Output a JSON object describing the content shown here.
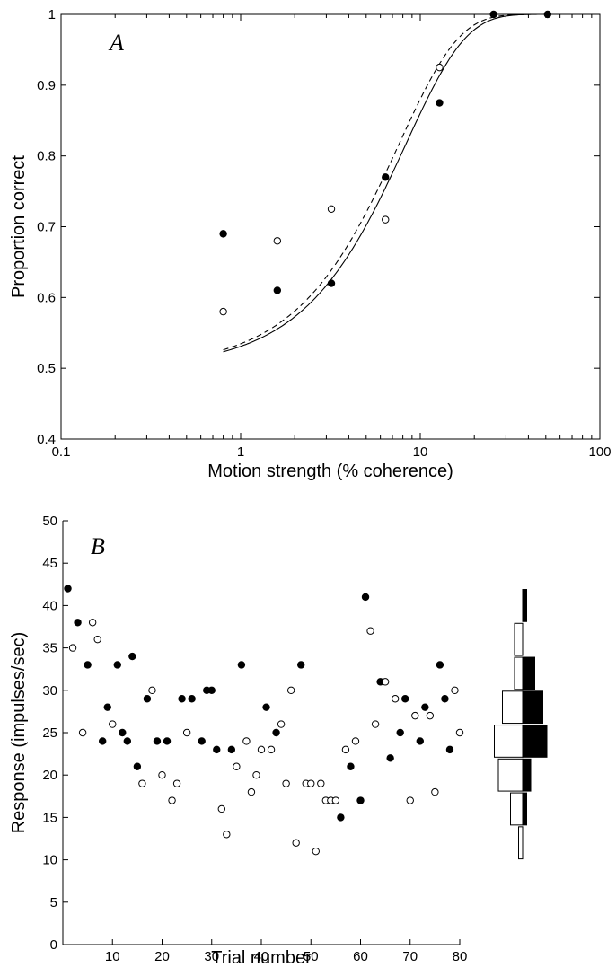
{
  "chart_data": [
    {
      "type": "scatter",
      "panel_label": "A",
      "xlabel": "Motion strength (% coherence)",
      "ylabel": "Proportion correct",
      "xscale": "log",
      "xlim": [
        0.1,
        100
      ],
      "ylim": [
        0.4,
        1
      ],
      "xticks": [
        0.1,
        1,
        10,
        100
      ],
      "xtick_labels": [
        "0.1",
        "1",
        "10",
        "100"
      ],
      "yticks": [
        0.4,
        0.5,
        0.6,
        0.7,
        0.8,
        0.9,
        1
      ],
      "ytick_labels": [
        "0.4",
        "0.5",
        "0.6",
        "0.7",
        "0.8",
        "0.9",
        "1"
      ],
      "grid": false,
      "series": [
        {
          "marker": "filled-circle",
          "x": [
            0.8,
            1.6,
            3.2,
            6.4,
            12.8,
            25.6,
            51.2
          ],
          "y": [
            0.69,
            0.61,
            0.62,
            0.77,
            0.875,
            1.0,
            1.0
          ]
        },
        {
          "marker": "open-circle",
          "x": [
            0.8,
            1.6,
            3.2,
            6.4,
            12.8
          ],
          "y": [
            0.58,
            0.68,
            0.725,
            0.71,
            0.925
          ]
        }
      ],
      "fits": [
        {
          "style": "solid",
          "threshold": 8.3,
          "slope": 1.3
        },
        {
          "style": "dashed",
          "threshold": 7.6,
          "slope": 1.3
        }
      ]
    },
    {
      "type": "scatter",
      "panel_label": "B",
      "xlabel": "Trial number",
      "ylabel": "Response (impulses/sec)",
      "xlim": [
        0,
        80
      ],
      "ylim": [
        0,
        50
      ],
      "xticks": [
        10,
        20,
        30,
        40,
        50,
        60,
        70,
        80
      ],
      "xtick_labels": [
        "10",
        "20",
        "30",
        "40",
        "50",
        "60",
        "70",
        "80"
      ],
      "yticks": [
        0,
        5,
        10,
        15,
        20,
        25,
        30,
        35,
        40,
        45,
        50
      ],
      "ytick_labels": [
        "0",
        "5",
        "10",
        "15",
        "20",
        "25",
        "30",
        "35",
        "40",
        "45",
        "50"
      ],
      "grid": false,
      "series": [
        {
          "marker": "filled-circle",
          "x": [
            1,
            3,
            5,
            8,
            9,
            11,
            12,
            13,
            14,
            15,
            17,
            19,
            21,
            24,
            26,
            28,
            29,
            30,
            31,
            34,
            36,
            41,
            43,
            48,
            56,
            58,
            60,
            61,
            64,
            66,
            68,
            69,
            72,
            73,
            76,
            77,
            78
          ],
          "y": [
            42,
            38,
            33,
            24,
            28,
            33,
            25,
            24,
            34,
            21,
            29,
            24,
            24,
            29,
            29,
            24,
            30,
            30,
            23,
            23,
            33,
            28,
            25,
            33,
            15,
            21,
            17,
            41,
            31,
            22,
            25,
            29,
            24,
            28,
            33,
            29,
            23
          ]
        },
        {
          "marker": "open-circle",
          "x": [
            2,
            4,
            6,
            7,
            10,
            16,
            18,
            20,
            22,
            23,
            25,
            32,
            33,
            35,
            37,
            38,
            39,
            40,
            42,
            44,
            45,
            46,
            47,
            49,
            50,
            51,
            52,
            53,
            54,
            55,
            57,
            59,
            62,
            63,
            65,
            67,
            70,
            71,
            74,
            75,
            79,
            80
          ],
          "y": [
            35,
            25,
            38,
            36,
            26,
            19,
            30,
            20,
            17,
            19,
            25,
            16,
            13,
            21,
            24,
            18,
            20,
            23,
            23,
            26,
            19,
            30,
            12,
            19,
            19,
            11,
            19,
            17,
            17,
            17,
            23,
            24,
            37,
            26,
            31,
            29,
            17,
            27,
            27,
            18,
            30,
            25
          ]
        }
      ],
      "histogram": {
        "bin_edges": [
          10,
          14,
          18,
          22,
          26,
          30,
          34,
          38,
          42
        ],
        "open_counts": [
          1,
          3,
          6,
          7,
          5,
          2,
          2,
          0
        ],
        "filled_counts": [
          0,
          1,
          2,
          6,
          5,
          3,
          0,
          1
        ]
      }
    }
  ]
}
